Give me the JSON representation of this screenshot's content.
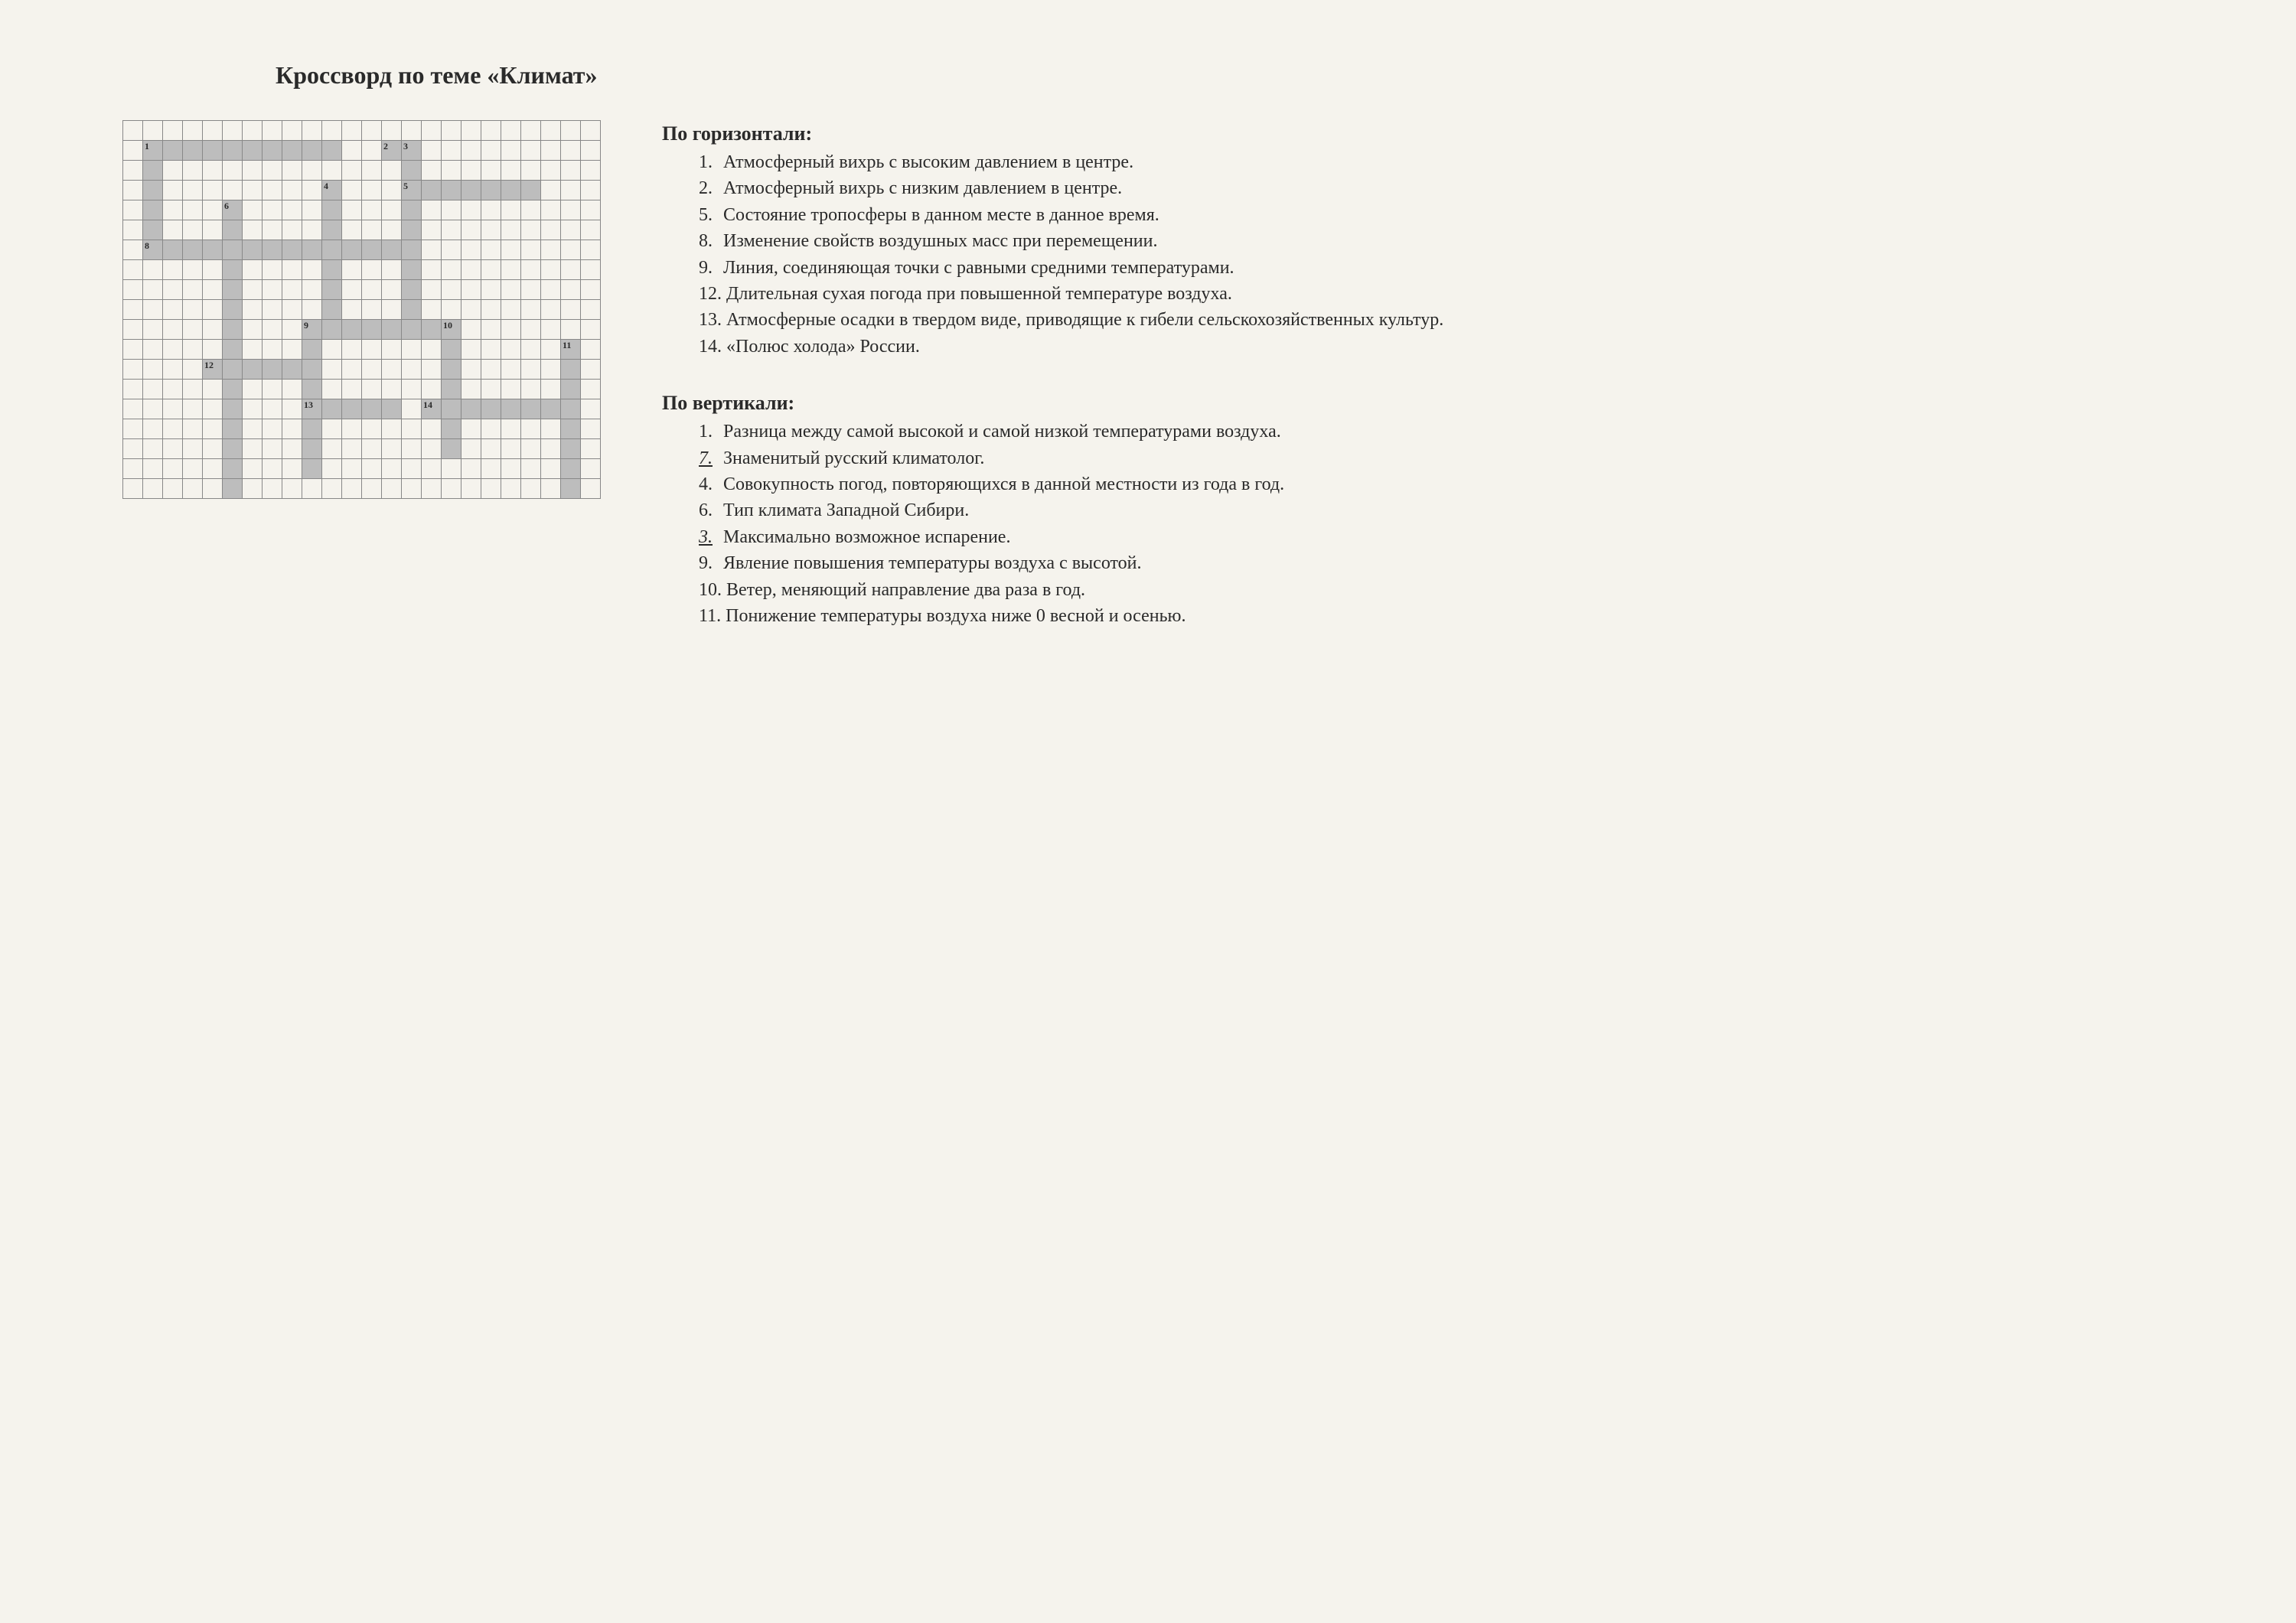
{
  "title": "Кроссворд по теме «Климат»",
  "grid": {
    "cols": 24,
    "rows": 19,
    "cell_size": 26,
    "fill_color": "#bdbdbd",
    "border_color": "#888888",
    "background_color": "#f5f3ed",
    "filled_cells": [
      [
        1,
        1
      ],
      [
        1,
        2
      ],
      [
        1,
        3
      ],
      [
        1,
        4
      ],
      [
        1,
        5
      ],
      [
        1,
        6
      ],
      [
        1,
        7
      ],
      [
        1,
        8
      ],
      [
        1,
        9
      ],
      [
        1,
        10
      ],
      [
        1,
        13
      ],
      [
        1,
        14
      ],
      [
        2,
        1
      ],
      [
        2,
        14
      ],
      [
        3,
        1
      ],
      [
        3,
        10
      ],
      [
        3,
        14
      ],
      [
        3,
        15
      ],
      [
        3,
        16
      ],
      [
        3,
        17
      ],
      [
        3,
        18
      ],
      [
        3,
        19
      ],
      [
        3,
        20
      ],
      [
        4,
        1
      ],
      [
        4,
        5
      ],
      [
        4,
        10
      ],
      [
        4,
        14
      ],
      [
        5,
        1
      ],
      [
        5,
        5
      ],
      [
        5,
        10
      ],
      [
        5,
        14
      ],
      [
        6,
        1
      ],
      [
        6,
        2
      ],
      [
        6,
        3
      ],
      [
        6,
        4
      ],
      [
        6,
        5
      ],
      [
        6,
        6
      ],
      [
        6,
        7
      ],
      [
        6,
        8
      ],
      [
        6,
        9
      ],
      [
        6,
        10
      ],
      [
        6,
        11
      ],
      [
        6,
        12
      ],
      [
        6,
        13
      ],
      [
        6,
        14
      ],
      [
        7,
        5
      ],
      [
        7,
        10
      ],
      [
        7,
        14
      ],
      [
        8,
        5
      ],
      [
        8,
        10
      ],
      [
        8,
        14
      ],
      [
        9,
        5
      ],
      [
        9,
        10
      ],
      [
        9,
        14
      ],
      [
        10,
        5
      ],
      [
        10,
        9
      ],
      [
        10,
        10
      ],
      [
        10,
        11
      ],
      [
        10,
        12
      ],
      [
        10,
        13
      ],
      [
        10,
        14
      ],
      [
        10,
        15
      ],
      [
        10,
        16
      ],
      [
        11,
        5
      ],
      [
        11,
        9
      ],
      [
        11,
        16
      ],
      [
        11,
        22
      ],
      [
        12,
        4
      ],
      [
        12,
        5
      ],
      [
        12,
        6
      ],
      [
        12,
        7
      ],
      [
        12,
        8
      ],
      [
        12,
        9
      ],
      [
        12,
        16
      ],
      [
        12,
        22
      ],
      [
        13,
        5
      ],
      [
        13,
        9
      ],
      [
        13,
        16
      ],
      [
        13,
        22
      ],
      [
        14,
        5
      ],
      [
        14,
        9
      ],
      [
        14,
        10
      ],
      [
        14,
        11
      ],
      [
        14,
        12
      ],
      [
        14,
        13
      ],
      [
        14,
        15
      ],
      [
        14,
        16
      ],
      [
        14,
        17
      ],
      [
        14,
        18
      ],
      [
        14,
        19
      ],
      [
        14,
        20
      ],
      [
        14,
        21
      ],
      [
        14,
        22
      ],
      [
        15,
        5
      ],
      [
        15,
        9
      ],
      [
        15,
        16
      ],
      [
        15,
        22
      ],
      [
        16,
        5
      ],
      [
        16,
        9
      ],
      [
        16,
        16
      ],
      [
        15,
        22
      ],
      [
        16,
        22
      ],
      [
        17,
        5
      ],
      [
        17,
        9
      ],
      [
        17,
        22
      ],
      [
        18,
        5
      ],
      [
        18,
        22
      ]
    ],
    "numbers": [
      {
        "row": 1,
        "col": 1,
        "n": "1"
      },
      {
        "row": 1,
        "col": 13,
        "n": "2"
      },
      {
        "row": 1,
        "col": 14,
        "n": "3"
      },
      {
        "row": 3,
        "col": 10,
        "n": "4"
      },
      {
        "row": 3,
        "col": 14,
        "n": "5"
      },
      {
        "row": 4,
        "col": 5,
        "n": "6"
      },
      {
        "row": 6,
        "col": 1,
        "n": "8"
      },
      {
        "row": 10,
        "col": 9,
        "n": "9"
      },
      {
        "row": 10,
        "col": 16,
        "n": "10"
      },
      {
        "row": 11,
        "col": 22,
        "n": "11"
      },
      {
        "row": 12,
        "col": 4,
        "n": "12"
      },
      {
        "row": 14,
        "col": 9,
        "n": "13"
      },
      {
        "row": 14,
        "col": 15,
        "n": "14"
      }
    ]
  },
  "across": {
    "heading": "По горизонтали:",
    "items": [
      {
        "n": "1",
        "text": "Атмосферный вихрь с высоким давлением в центре."
      },
      {
        "n": "2",
        "text": "Атмосферный вихрь с низким давлением в центре."
      },
      {
        "n": "5",
        "text": "Состояние тропосферы в данном месте в данное время."
      },
      {
        "n": "8",
        "text": "Изменение свойств воздушных масс при перемещении."
      },
      {
        "n": "9",
        "text": "Линия, соединяющая точки с равными средними температурами."
      },
      {
        "n": "12",
        "text": "Длительная сухая погода при повышенной температуре воздуха."
      },
      {
        "n": "13",
        "text": "Атмосферные осадки в твердом виде, приводящие к гибели сельскохозяйственных культур."
      },
      {
        "n": "14",
        "text": "«Полюс холода» России."
      }
    ]
  },
  "down": {
    "heading": "По вертикали:",
    "items": [
      {
        "n": "1",
        "text": "Разница между самой высокой и самой низкой температурами воздуха.",
        "hand": false
      },
      {
        "n": "7",
        "text": "Знаменитый русский климатолог.",
        "hand": true
      },
      {
        "n": "4",
        "text": "Совокупность погод, повторяющихся в данной местности из года в год.",
        "hand": false
      },
      {
        "n": "6",
        "text": "Тип климата Западной Сибири.",
        "hand": false
      },
      {
        "n": "3",
        "text": "Максимально возможное испарение.",
        "hand": true
      },
      {
        "n": "9",
        "text": "Явление повышения температуры воздуха с высотой.",
        "hand": false
      },
      {
        "n": "10",
        "text": "Ветер, меняющий направление два раза в год.",
        "hand": false
      },
      {
        "n": "11",
        "text": "Понижение температуры воздуха ниже 0 весной и осенью.",
        "hand": false
      }
    ]
  }
}
